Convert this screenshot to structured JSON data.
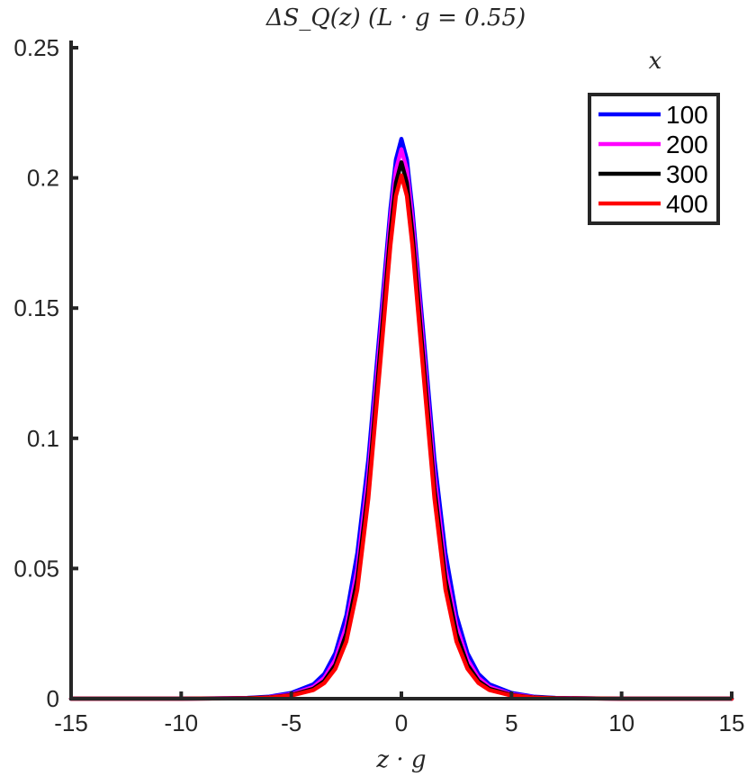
{
  "chart_data": {
    "type": "line",
    "title": "ΔS_Q(z) (L · g = 0.55)",
    "xlabel": "z · g",
    "ylabel": "",
    "xlim": [
      -15,
      15
    ],
    "ylim": [
      0,
      0.25
    ],
    "xticks": [
      -15,
      -10,
      -5,
      0,
      5,
      10,
      15
    ],
    "xtick_labels": [
      "-15",
      "-10",
      "-5",
      "0",
      "5",
      "10",
      "15"
    ],
    "yticks": [
      0,
      0.05,
      0.1,
      0.15,
      0.2,
      0.25
    ],
    "ytick_labels": [
      "0",
      "0.05",
      "0.1",
      "0.15",
      "0.2",
      "0.25"
    ],
    "grid": false,
    "legend": {
      "title": "x",
      "placement": "top-right",
      "boxed": true
    },
    "series": [
      {
        "name": "100",
        "color": "#0000ff",
        "x": [
          -15,
          -10,
          -7,
          -6,
          -5,
          -4,
          -3.5,
          -3,
          -2.5,
          -2,
          -1.5,
          -1,
          -0.5,
          -0.25,
          0,
          0.25,
          0.5,
          1,
          1.5,
          2,
          2.5,
          3,
          3.5,
          4,
          5,
          6,
          7,
          10,
          15
        ],
        "y": [
          0,
          0,
          0.0003,
          0.0008,
          0.0022,
          0.0055,
          0.0095,
          0.0175,
          0.032,
          0.056,
          0.092,
          0.14,
          0.188,
          0.207,
          0.215,
          0.207,
          0.188,
          0.14,
          0.092,
          0.056,
          0.032,
          0.0175,
          0.0095,
          0.0055,
          0.0022,
          0.0008,
          0.0003,
          0,
          0
        ]
      },
      {
        "name": "200",
        "color": "#ff00ff",
        "x": [
          -15,
          -10,
          -7,
          -6,
          -5,
          -4,
          -3.5,
          -3,
          -2.5,
          -2,
          -1.5,
          -1,
          -0.5,
          -0.25,
          0,
          0.25,
          0.5,
          1,
          1.5,
          2,
          2.5,
          3,
          3.5,
          4,
          5,
          6,
          7,
          10,
          15
        ],
        "y": [
          0,
          0,
          0.0002,
          0.0006,
          0.0017,
          0.0045,
          0.008,
          0.015,
          0.028,
          0.05,
          0.086,
          0.135,
          0.184,
          0.203,
          0.211,
          0.203,
          0.184,
          0.135,
          0.086,
          0.05,
          0.028,
          0.015,
          0.008,
          0.0045,
          0.0017,
          0.0006,
          0.0002,
          0,
          0
        ]
      },
      {
        "name": "300",
        "color": "#000000",
        "x": [
          -15,
          -10,
          -7,
          -6,
          -5,
          -4,
          -3.5,
          -3,
          -2.5,
          -2,
          -1.5,
          -1,
          -0.5,
          -0.25,
          0,
          0.25,
          0.5,
          1,
          1.5,
          2,
          2.5,
          3,
          3.5,
          4,
          5,
          6,
          7,
          10,
          15
        ],
        "y": [
          0,
          0,
          0.0002,
          0.0005,
          0.0014,
          0.0038,
          0.0068,
          0.013,
          0.025,
          0.046,
          0.081,
          0.13,
          0.179,
          0.198,
          0.206,
          0.198,
          0.179,
          0.13,
          0.081,
          0.046,
          0.025,
          0.013,
          0.0068,
          0.0038,
          0.0014,
          0.0005,
          0.0002,
          0,
          0
        ]
      },
      {
        "name": "400",
        "color": "#ff0000",
        "x": [
          -15,
          -10,
          -7,
          -6,
          -5,
          -4,
          -3.5,
          -3,
          -2.5,
          -2,
          -1.5,
          -1,
          -0.5,
          -0.25,
          0,
          0.25,
          0.5,
          1,
          1.5,
          2,
          2.5,
          3,
          3.5,
          4,
          5,
          6,
          7,
          10,
          15
        ],
        "y": [
          0,
          0,
          0.0001,
          0.0004,
          0.0012,
          0.0033,
          0.006,
          0.0115,
          0.022,
          0.042,
          0.077,
          0.125,
          0.174,
          0.193,
          0.201,
          0.193,
          0.174,
          0.125,
          0.077,
          0.042,
          0.022,
          0.0115,
          0.006,
          0.0033,
          0.0012,
          0.0004,
          0.0001,
          0,
          0
        ]
      }
    ]
  }
}
